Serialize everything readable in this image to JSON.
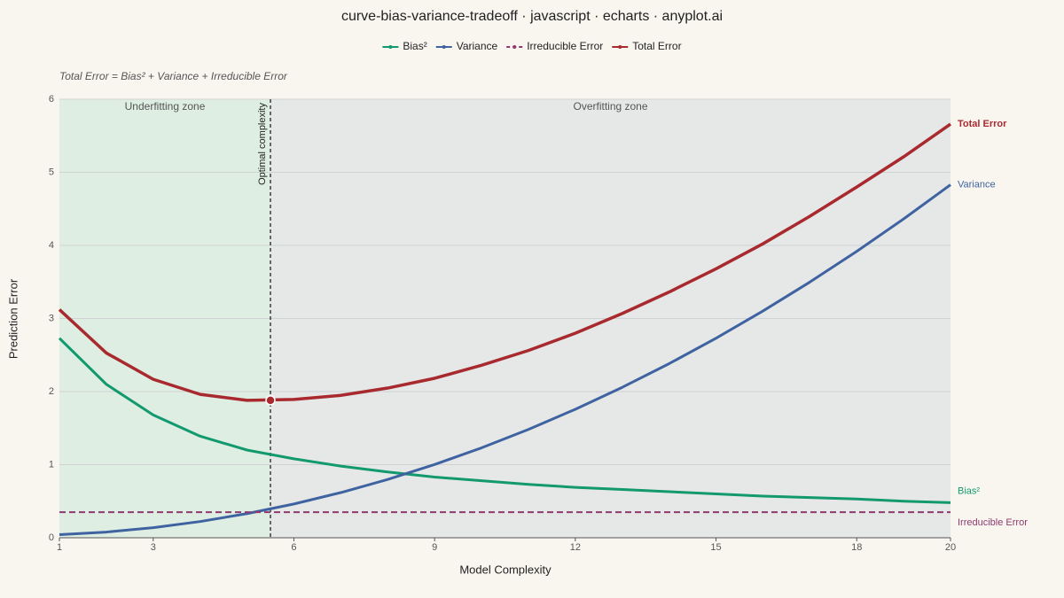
{
  "chart_data": {
    "type": "line",
    "title": "curve-bias-variance-tradeoff · javascript · echarts · anyplot.ai",
    "annotation": "Total Error = Bias² + Variance + Irreducible Error",
    "x_label": "Model Complexity",
    "y_label": "Prediction Error",
    "x": [
      1,
      2,
      3,
      4,
      5,
      6,
      7,
      8,
      9,
      10,
      11,
      12,
      13,
      14,
      15,
      16,
      17,
      18,
      19,
      20
    ],
    "series": [
      {
        "name": "Bias²",
        "color": "#12996d",
        "values": [
          2.73,
          2.1,
          1.68,
          1.39,
          1.2,
          1.08,
          0.98,
          0.9,
          0.83,
          0.78,
          0.73,
          0.69,
          0.66,
          0.63,
          0.6,
          0.57,
          0.55,
          0.53,
          0.5,
          0.48
        ]
      },
      {
        "name": "Variance",
        "color": "#3f63a0",
        "values": [
          0.042,
          0.078,
          0.138,
          0.222,
          0.33,
          0.462,
          0.618,
          0.798,
          1.002,
          1.23,
          1.482,
          1.758,
          2.058,
          2.382,
          2.73,
          3.102,
          3.498,
          3.918,
          4.362,
          4.83
        ]
      },
      {
        "name": "Irreducible Error",
        "color": "#8e3a6e",
        "dashed": true,
        "values": [
          0.35,
          0.35,
          0.35,
          0.35,
          0.35,
          0.35,
          0.35,
          0.35,
          0.35,
          0.35,
          0.35,
          0.35,
          0.35,
          0.35,
          0.35,
          0.35,
          0.35,
          0.35,
          0.35,
          0.35
        ]
      },
      {
        "name": "Total Error",
        "color": "#a82a2e",
        "values": [
          3.122,
          2.528,
          2.168,
          1.962,
          1.88,
          1.892,
          1.948,
          2.048,
          2.182,
          2.36,
          2.562,
          2.798,
          3.068,
          3.362,
          3.68,
          4.022,
          4.398,
          4.798,
          5.212,
          5.66
        ]
      }
    ],
    "zones": [
      {
        "label": "Underfitting zone",
        "from": 1,
        "to": 5.5,
        "color": "#dfeee3"
      },
      {
        "label": "Overfitting zone",
        "from": 5.5,
        "to": 20,
        "color": "#e6e8e8"
      }
    ],
    "optimal": {
      "label": "Optimal complexity",
      "x": 5.5,
      "total_error": 1.88
    },
    "xlim": [
      1,
      20
    ],
    "xticks": [
      1,
      3,
      6,
      9,
      12,
      15,
      18,
      20
    ],
    "ylim": [
      0,
      6
    ],
    "yticks": [
      0,
      1,
      2,
      3,
      4,
      5,
      6
    ],
    "grid": true,
    "legend": "top"
  }
}
